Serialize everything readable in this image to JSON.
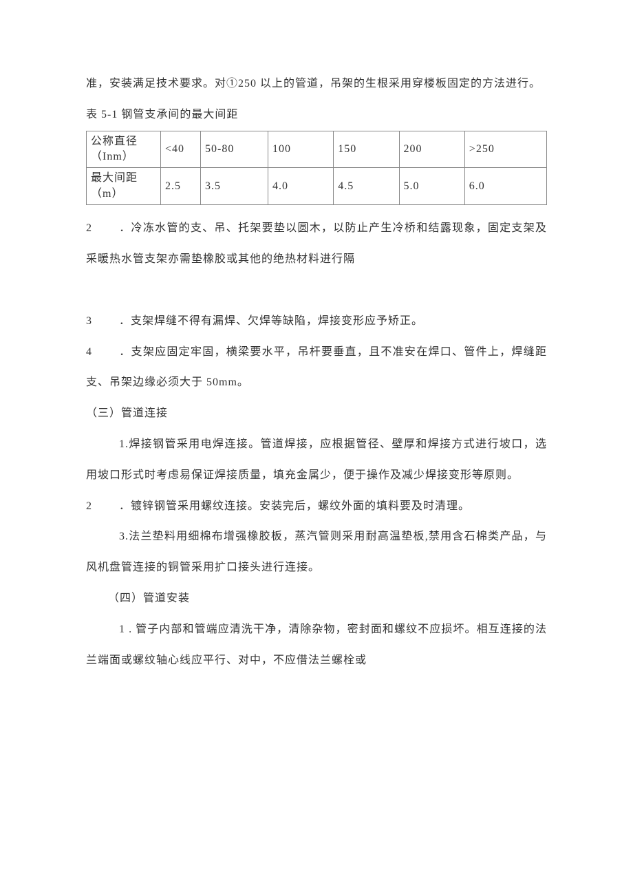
{
  "intro_paragraph": "准，安装满足技术要求。对①250 以上的管道，吊架的生根采用穿楼板固定的方法进行。",
  "table": {
    "title": "表 5-1 钢管支承间的最大间距",
    "columns": [
      "公称直径（Inm）",
      "<40",
      "50-80",
      "100",
      "150",
      "200",
      ">250"
    ],
    "rows": [
      [
        "最大间距（m）",
        "2.5",
        "3.5",
        "4.0",
        "4.5",
        "5.0",
        "6.0"
      ]
    ],
    "border_color": "#888888",
    "text_color": "#333333",
    "background_color": "#ffffff",
    "font_size": 16
  },
  "items_after_table": [
    {
      "num": "2",
      "text": "．冷冻水管的支、吊、托架要垫以圆木，以防止产生冷桥和结露现象，固定支架及采暖热水管支架亦需垫橡胶或其他的绝热材料进行隔"
    },
    {
      "num": "3",
      "text": "．支架焊缝不得有漏焊、欠焊等缺陷，焊接变形应予矫正。"
    },
    {
      "num": "4",
      "text": "．支架应固定牢固，横梁要水平，吊杆要垂直，且不准安在焊口、管件上，焊缝距支、吊架边缘必须大于 50mm。"
    }
  ],
  "section3": {
    "heading": "（三）管道连接",
    "items": [
      "1.焊接钢管采用电焊连接。管道焊接，应根据管径、壁厚和焊接方式进行坡口，选用坡口形式时考虑易保证焊接质量，填充金属少，便于操作及减少焊接变形等原则。",
      "．镀锌钢管采用螺纹连接。安装完后，螺纹外面的填料要及时清理。",
      "3.法兰垫料用细棉布增强橡胶板，蒸汽管则采用耐高温垫板,禁用含石棉类产品，与风机盘管连接的铜管采用扩口接头进行连接。"
    ],
    "num2": "2"
  },
  "section4": {
    "heading": "（四）管道安装",
    "item1": "1 . 管子内部和管端应清洗干净，清除杂物，密封面和螺纹不应损坏。相互连接的法兰端面或螺纹轴心线应平行、对中，不应借法兰螺栓或"
  }
}
